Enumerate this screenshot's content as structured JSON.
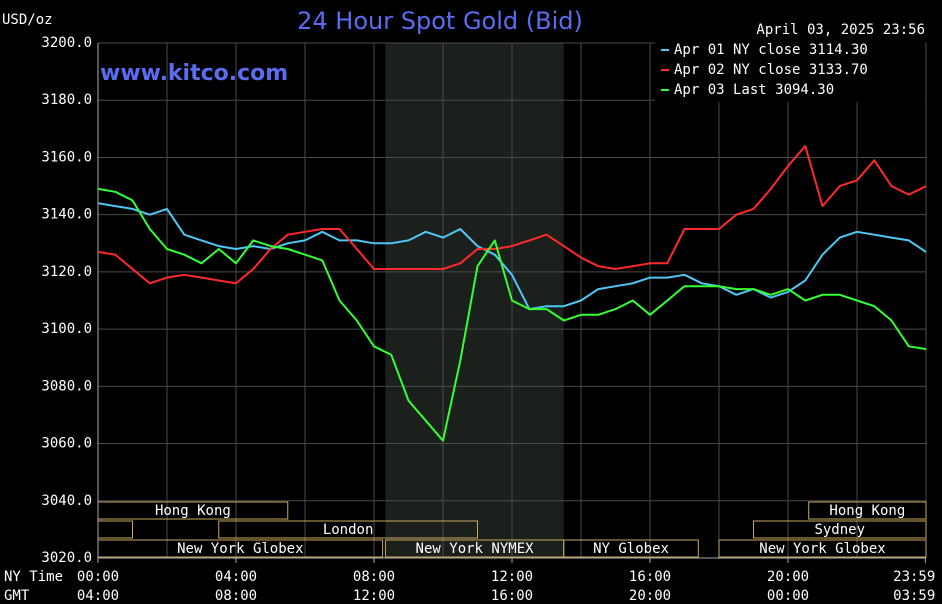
{
  "chart_data": {
    "type": "line",
    "title": "24 Hour Spot Gold (Bid)",
    "subtitle": "www.kitco.com",
    "timestamp": "April 03, 2025 23:56",
    "y_label": "USD/oz",
    "x_label": "NY Time",
    "x2_label": "GMT",
    "x": [
      0,
      0.5,
      1,
      1.5,
      2,
      2.5,
      3,
      3.5,
      4,
      4.5,
      5,
      5.5,
      6,
      6.5,
      7,
      7.5,
      8,
      8.5,
      9,
      9.5,
      10,
      10.5,
      11,
      11.5,
      12,
      12.5,
      13,
      13.5,
      14,
      14.5,
      15,
      15.5,
      16,
      16.5,
      17,
      17.5,
      18,
      18.5,
      19,
      19.5,
      20,
      20.5,
      21,
      21.5,
      22,
      22.5,
      23,
      23.5,
      24
    ],
    "series": [
      {
        "name": "Apr 01 NY close 3114.30",
        "color": "#4fc8f5",
        "values": [
          3144,
          3143,
          3142,
          3140,
          3142,
          3133,
          3131,
          3129,
          3128,
          3129,
          3128,
          3130,
          3131,
          3134,
          3131,
          3131,
          3130,
          3130,
          3131,
          3134,
          3132,
          3135,
          3129,
          3126,
          3119,
          3107,
          3108,
          3108,
          3110,
          3114,
          3115,
          3116,
          3118,
          3118,
          3119,
          3116,
          3115,
          3112,
          3114,
          3111,
          3113,
          3117,
          3126,
          3132,
          3134,
          3133,
          3132,
          3131,
          3127
        ]
      },
      {
        "name": "Apr 02 NY close 3133.70",
        "color": "#ff2a2a",
        "values": [
          3127,
          3126,
          3121,
          3116,
          3118,
          3119,
          3118,
          3117,
          3116,
          3121,
          3128,
          3133,
          3134,
          3135,
          3135,
          3128,
          3121,
          3121,
          3121,
          3121,
          3121,
          3123,
          3128,
          3128,
          3129,
          3131,
          3133,
          3129,
          3125,
          3122,
          3121,
          3122,
          3123,
          3123,
          3135,
          3135,
          3135,
          3140,
          3142,
          3149,
          3157,
          3164,
          3143,
          3150,
          3152,
          3159,
          3150,
          3147,
          3150
        ]
      },
      {
        "name": "Apr 03 Last 3094.30",
        "color": "#33ff33",
        "values": [
          3149,
          3148,
          3145,
          3135,
          3128,
          3126,
          3123,
          3128,
          3123,
          3131,
          3129,
          3128,
          3126,
          3124,
          3110,
          3103,
          3094,
          3091,
          3075,
          3068,
          3061,
          3089,
          3122,
          3131,
          3110,
          3107,
          3107,
          3103,
          3105,
          3105,
          3107,
          3110,
          3105,
          3110,
          3115,
          3115,
          3115,
          3114,
          3114,
          3112,
          3114,
          3110,
          3112,
          3112,
          3110,
          3108,
          3103,
          3094,
          3093
        ]
      }
    ],
    "xlim": [
      0,
      24
    ],
    "xticks": [
      {
        "value": 0,
        "label": "00:00"
      },
      {
        "value": 4,
        "label": "04:00"
      },
      {
        "value": 8,
        "label": "08:00"
      },
      {
        "value": 12,
        "label": "12:00"
      },
      {
        "value": 16,
        "label": "16:00"
      },
      {
        "value": 20,
        "label": "20:00"
      },
      {
        "value": 23.98,
        "label": "23:59"
      }
    ],
    "x2ticks": [
      "04:00",
      "08:00",
      "12:00",
      "16:00",
      "20:00",
      "00:00",
      "03:59"
    ],
    "xgrid": [
      0,
      2,
      4,
      6,
      8,
      10,
      12,
      14,
      16,
      18,
      20,
      22,
      24
    ],
    "ylim": [
      3020,
      3200
    ],
    "yticks": [
      {
        "value": 3020,
        "label": "3020.0"
      },
      {
        "value": 3040,
        "label": "3040.0"
      },
      {
        "value": 3060,
        "label": "3060.0"
      },
      {
        "value": 3080,
        "label": "3080.0"
      },
      {
        "value": 3100,
        "label": "3100.0"
      },
      {
        "value": 3120,
        "label": "3120.0"
      },
      {
        "value": 3140,
        "label": "3140.0"
      },
      {
        "value": 3160,
        "label": "3160.0"
      },
      {
        "value": 3180,
        "label": "3180.0"
      },
      {
        "value": 3200,
        "label": "3200.0"
      }
    ],
    "grid": true,
    "legend": "top-right",
    "highlight_range": [
      8.33,
      13.5
    ],
    "sessions": [
      {
        "label": "Hong Kong",
        "row": 0,
        "start": 0,
        "end": 5.5
      },
      {
        "label": "Hong Kong",
        "row": 0,
        "start": 20.6,
        "end": 24
      },
      {
        "label": null,
        "row": 1,
        "start": 0,
        "end": 1
      },
      {
        "label": "London",
        "row": 1,
        "start": 3.5,
        "end": 11
      },
      {
        "label": "Sydney",
        "row": 1,
        "start": 19,
        "end": 24
      },
      {
        "label": "New York Globex",
        "row": 2,
        "start": 0,
        "end": 8.25
      },
      {
        "label": "New York NYMEX",
        "row": 2,
        "start": 8.33,
        "end": 13.5
      },
      {
        "label": "NY Globex",
        "row": 2,
        "start": 13.5,
        "end": 17.4
      },
      {
        "label": "New York Globex",
        "row": 2,
        "start": 18,
        "end": 24
      }
    ]
  }
}
